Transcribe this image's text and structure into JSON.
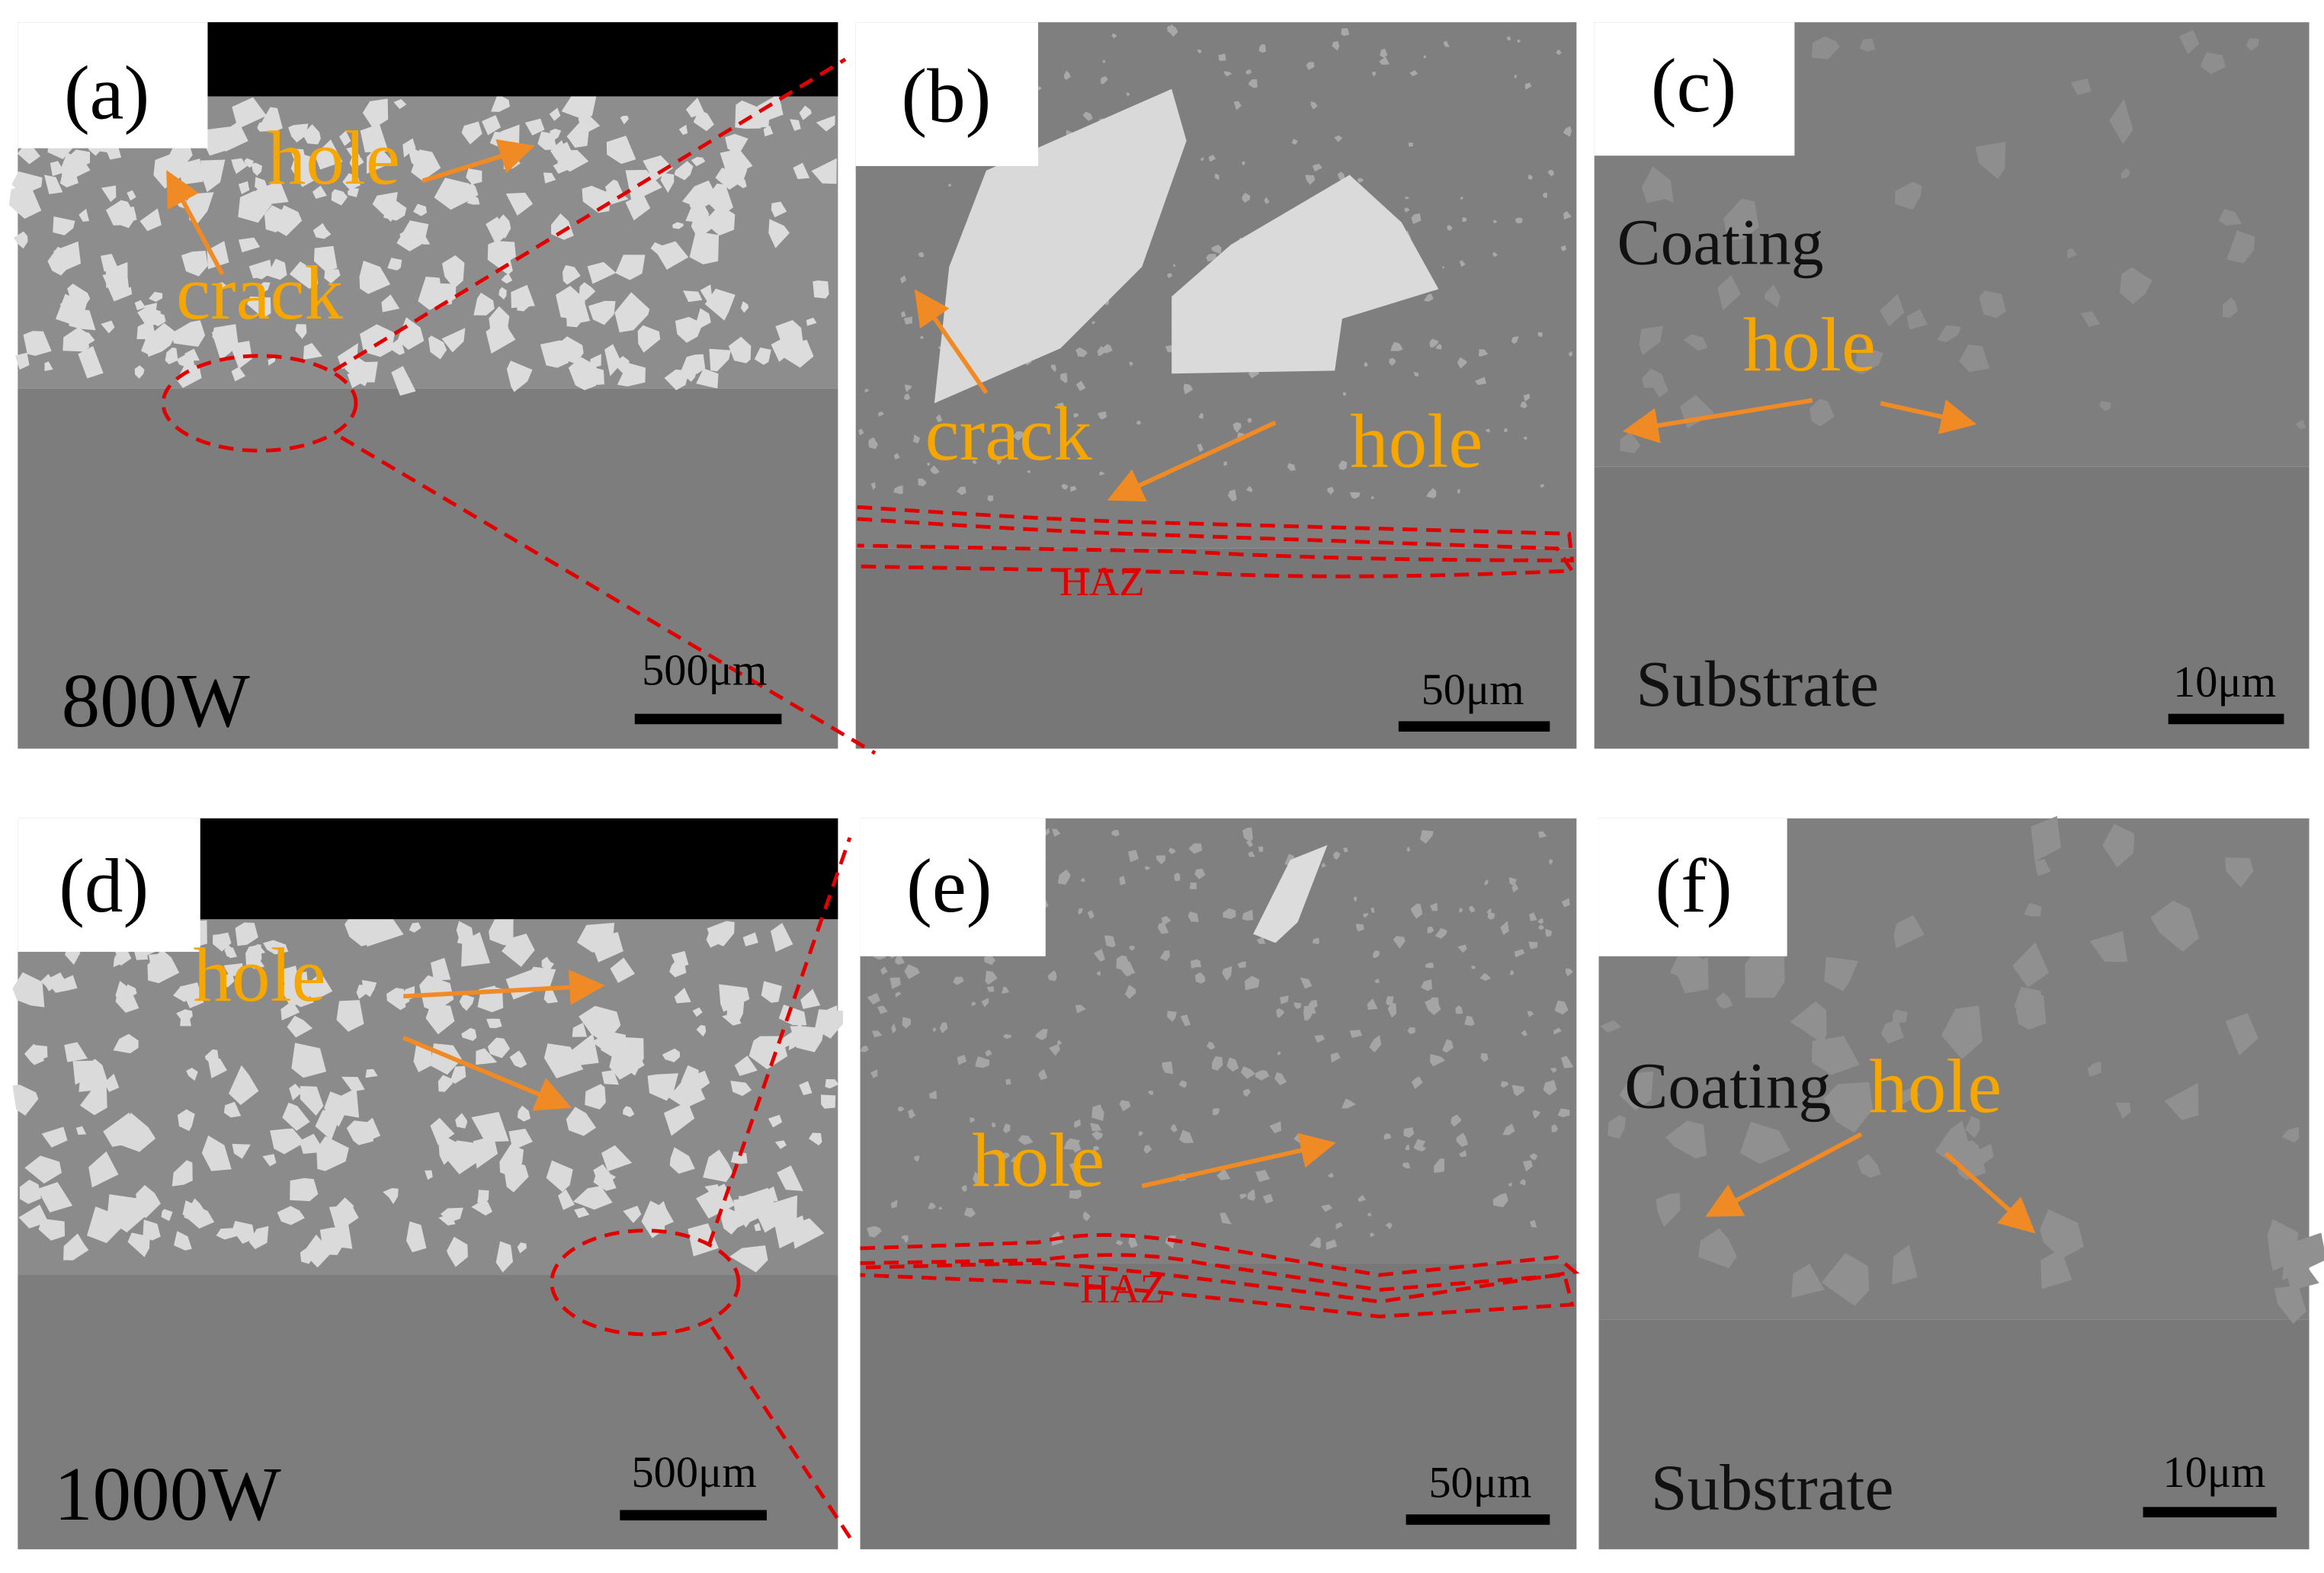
{
  "panels": [
    {
      "label": "(a)",
      "texts": [
        "hole",
        "crack"
      ],
      "caption": "800W",
      "scale_bar": "500μm"
    },
    {
      "label": "(b)",
      "texts": [
        "crack",
        "hole",
        "HAZ"
      ],
      "scale_bar": "50μm"
    },
    {
      "label": "(c)",
      "texts": [
        "Coating",
        "hole",
        "Substrate"
      ],
      "scale_bar": "10μm"
    },
    {
      "label": "(d)",
      "texts": [
        "hole"
      ],
      "caption": "1000W",
      "scale_bar": "500μm"
    },
    {
      "label": "(e)",
      "texts": [
        "hole",
        "HAZ"
      ],
      "scale_bar": "50μm"
    },
    {
      "label": "(f)",
      "texts": [
        "Coating",
        "hole",
        "Substrate"
      ],
      "scale_bar": "10μm"
    }
  ]
}
